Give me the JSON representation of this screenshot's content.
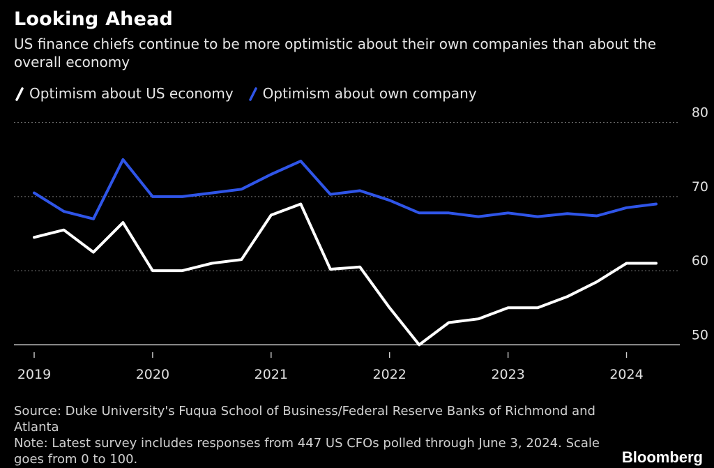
{
  "header": {
    "title": "Looking Ahead",
    "subtitle": "US finance chiefs continue to be more optimistic about their own companies than about the overall economy"
  },
  "footer": {
    "source": "Source: Duke University's Fuqua School of Business/Federal Reserve Banks of Richmond and Atlanta",
    "note": "Note: Latest survey includes responses from 447 US CFOs polled through June 3, 2024. Scale goes from 0 to 100.",
    "brand": "Bloomberg"
  },
  "colors": {
    "background": "#000000",
    "economy": "#ffffff",
    "company": "#2f55e8",
    "grid": "#777777"
  },
  "chart_data": {
    "type": "line",
    "title": "Looking Ahead",
    "subtitle": "US finance chiefs continue to be more optimistic about their own companies than about the overall economy",
    "xlabel": "",
    "ylabel": "",
    "x": [
      "2019-Q1",
      "2019-Q2",
      "2019-Q3",
      "2019-Q4",
      "2020-Q1",
      "2020-Q2",
      "2020-Q3",
      "2020-Q4",
      "2021-Q1",
      "2021-Q2",
      "2021-Q3",
      "2021-Q4",
      "2022-Q1",
      "2022-Q2",
      "2022-Q3",
      "2022-Q4",
      "2023-Q1",
      "2023-Q2",
      "2023-Q3",
      "2023-Q4",
      "2024-Q1",
      "2024-Q2"
    ],
    "xticks": [
      "2019",
      "2020",
      "2021",
      "2022",
      "2023",
      "2024"
    ],
    "yticks": [
      50,
      60,
      70,
      80
    ],
    "ylim": [
      49,
      81
    ],
    "grid": true,
    "y_axis_side": "right",
    "legend_position": "top-left",
    "series": [
      {
        "name": "Optimism about US economy",
        "color": "#ffffff",
        "values": [
          64.5,
          65.5,
          62.5,
          66.5,
          60,
          60,
          61,
          61.5,
          67.5,
          69,
          60.2,
          60.5,
          55,
          50,
          53,
          53.5,
          55,
          55,
          56.5,
          58.5,
          61,
          61
        ]
      },
      {
        "name": "Optimism about own company",
        "color": "#2f55e8",
        "values": [
          70.5,
          68,
          67,
          75,
          70,
          70,
          70.5,
          71,
          73,
          74.8,
          70.3,
          70.8,
          69.5,
          67.8,
          67.8,
          67.3,
          67.8,
          67.3,
          67.7,
          67.4,
          68.5,
          69
        ]
      }
    ]
  }
}
